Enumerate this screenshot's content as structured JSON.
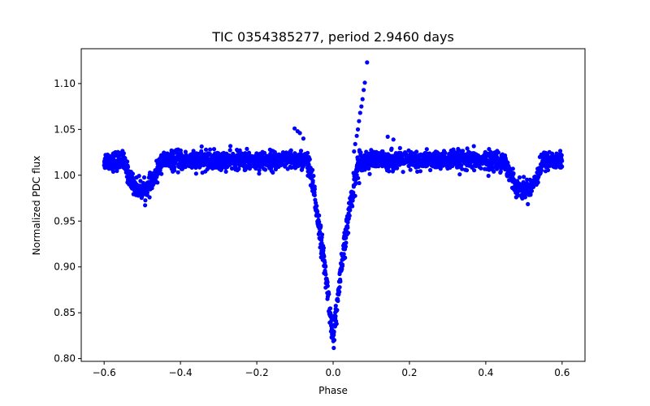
{
  "chart_data": {
    "type": "scatter",
    "title": "TIC 0354385277, period 2.9460 days",
    "xlabel": "Phase",
    "ylabel": "Normalized PDC flux",
    "xlim": [
      -0.66,
      0.66
    ],
    "ylim": [
      0.797,
      1.138
    ],
    "x_ticks": [
      -0.6,
      -0.4,
      -0.2,
      0.0,
      0.2,
      0.4,
      0.6
    ],
    "x_tick_labels": [
      "−0.6",
      "−0.4",
      "−0.2",
      "0.0",
      "0.2",
      "0.4",
      "0.6"
    ],
    "y_ticks": [
      0.8,
      0.85,
      0.9,
      0.95,
      1.0,
      1.05,
      1.1
    ],
    "y_tick_labels": [
      "0.80",
      "0.85",
      "0.90",
      "0.95",
      "1.00",
      "1.05",
      "1.10"
    ],
    "grid": false,
    "marker_color": "#0000ff",
    "series": [
      {
        "name": "PDC flux",
        "model": {
          "baseline": 1.016,
          "scatter": 0.005,
          "phase_range": [
            -0.6,
            0.6
          ],
          "primary_eclipse": {
            "center": 0.0,
            "depth": 0.195,
            "half_width": 0.07
          },
          "secondary_eclipse": {
            "center": 0.5,
            "depth": 0.032,
            "half_width": 0.05
          },
          "n_points": 2600
        },
        "outliers": [
          {
            "x": 0.089,
            "y": 1.123
          },
          {
            "x": 0.083,
            "y": 1.101
          },
          {
            "x": 0.08,
            "y": 1.093
          },
          {
            "x": 0.077,
            "y": 1.083
          },
          {
            "x": 0.074,
            "y": 1.075
          },
          {
            "x": 0.071,
            "y": 1.068
          },
          {
            "x": 0.068,
            "y": 1.059
          },
          {
            "x": 0.065,
            "y": 1.05
          },
          {
            "x": 0.062,
            "y": 1.043
          },
          {
            "x": 0.058,
            "y": 1.034
          },
          {
            "x": 0.055,
            "y": 1.026
          },
          {
            "x": -0.101,
            "y": 1.051
          },
          {
            "x": -0.093,
            "y": 1.048
          },
          {
            "x": -0.087,
            "y": 1.046
          },
          {
            "x": -0.078,
            "y": 1.04
          },
          {
            "x": 0.143,
            "y": 1.042
          },
          {
            "x": 0.158,
            "y": 1.039
          }
        ]
      }
    ]
  }
}
